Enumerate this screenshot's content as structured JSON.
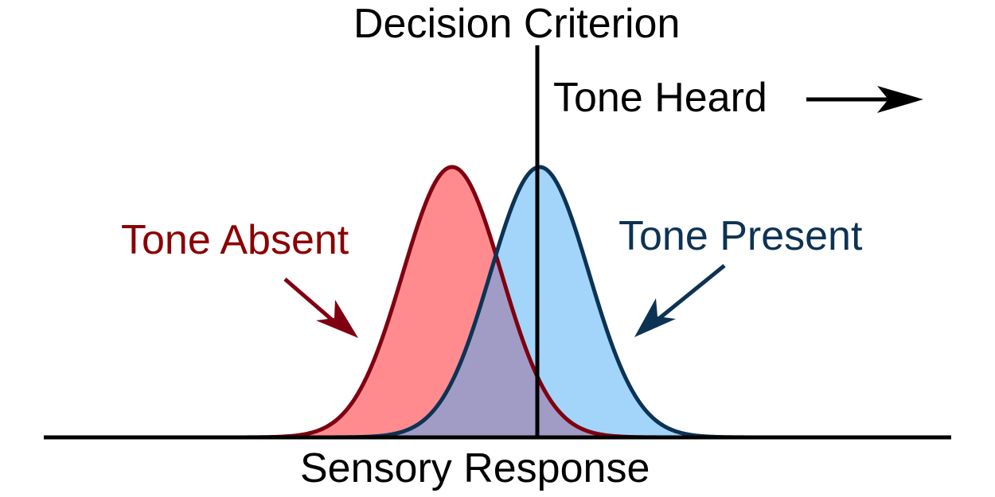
{
  "diagram": {
    "title": "Decision Criterion",
    "response_label": "Tone Heard",
    "axis_label": "Sensory Response",
    "absent_label": "Tone Absent",
    "present_label": "Tone Present"
  },
  "colors": {
    "absent_fill": "#ff8b8f",
    "absent_stroke": "#7f0010",
    "present_fill": "#a2d5f9",
    "present_stroke": "#0d3354",
    "overlap_fill": "#a19cc6",
    "line": "#000000"
  }
}
